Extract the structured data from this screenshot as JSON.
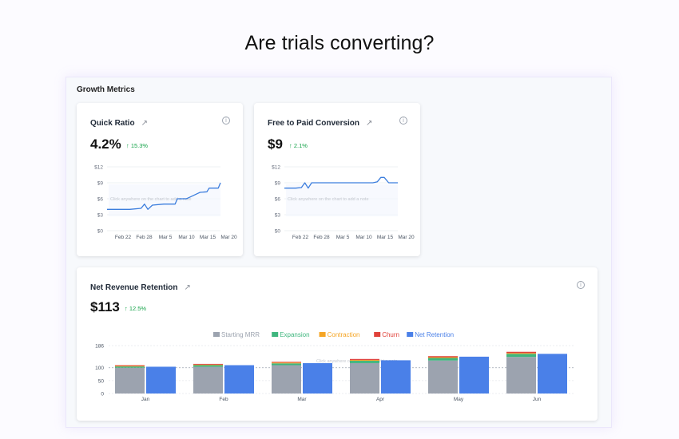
{
  "page": {
    "headline": "Are trials converting?"
  },
  "panel": {
    "title": "Growth Metrics"
  },
  "cards": [
    {
      "title": "Quick Ratio",
      "value": "4.2%",
      "delta": "↑ 15.3%",
      "overlay_note": "Click anywhere on the chart to add a note",
      "chart_data": {
        "type": "line",
        "y_ticks": [
          "$12",
          "$9",
          "$6",
          "$3",
          "$0"
        ],
        "ylim": [
          0,
          12
        ],
        "x_ticks": [
          "Feb 22",
          "Feb 28",
          "Mar 5",
          "Mar 10",
          "Mar 15",
          "Mar 20"
        ],
        "x": [
          0,
          0.1,
          0.2,
          0.3,
          0.33,
          0.36,
          0.4,
          0.5,
          0.55,
          0.6,
          0.62,
          0.7,
          0.72,
          0.8,
          0.82,
          0.88,
          0.9,
          0.95,
          0.98,
          1.0
        ],
        "y": [
          4,
          4,
          4,
          4.2,
          5,
          4,
          4.8,
          5,
          5,
          5,
          6,
          6,
          6.2,
          7,
          7.2,
          7.3,
          8,
          8,
          8,
          9
        ],
        "grid": true,
        "color": "#3b7ddd"
      }
    },
    {
      "title": "Free to Paid Conversion",
      "value": "$9",
      "delta": "↑ 2.1%",
      "overlay_note": "Click anywhere on the chart to add a note",
      "chart_data": {
        "type": "line",
        "y_ticks": [
          "$12",
          "$9",
          "$6",
          "$3",
          "$0"
        ],
        "ylim": [
          0,
          12
        ],
        "x_ticks": [
          "Feb 22",
          "Feb 28",
          "Mar 5",
          "Mar 10",
          "Mar 15",
          "Mar 20"
        ],
        "x": [
          0,
          0.1,
          0.15,
          0.18,
          0.21,
          0.24,
          0.3,
          0.4,
          0.5,
          0.6,
          0.7,
          0.78,
          0.82,
          0.85,
          0.88,
          0.92,
          1.0
        ],
        "y": [
          8,
          8,
          8.1,
          9,
          8,
          9,
          9,
          9,
          9,
          9,
          9,
          9,
          9.2,
          10,
          10,
          9,
          9
        ],
        "grid": true,
        "color": "#3b7ddd"
      }
    }
  ],
  "nrr": {
    "title": "Net Revenue Retention",
    "value": "$113",
    "delta": "↑ 12.5%",
    "overlay_note": "Click anywhere on the chart to add a note",
    "chart_data": {
      "type": "bar",
      "categories": [
        "Jan",
        "Feb",
        "Mar",
        "Apr",
        "May",
        "Jun"
      ],
      "y_ticks": [
        "186",
        "100",
        "50",
        "0"
      ],
      "ylim": [
        0,
        186
      ],
      "ref_line": 100,
      "legend_position": "top-center",
      "series": [
        {
          "name": "Starting MRR",
          "color": "#9ca3af",
          "values": [
            100,
            104,
            110,
            118,
            128,
            142
          ]
        },
        {
          "name": "Expansion",
          "color": "#3fb67e",
          "values": [
            5,
            6,
            7,
            9,
            10,
            12
          ]
        },
        {
          "name": "Contraction",
          "color": "#f5a524",
          "values": [
            2,
            2,
            3,
            3,
            3,
            3
          ]
        },
        {
          "name": "Churn",
          "color": "#e0423a",
          "values": [
            3,
            3,
            3,
            4,
            4,
            5
          ]
        },
        {
          "name": "Net Retention",
          "color": "#4a80e8",
          "values": [
            104,
            110,
            118,
            129,
            143,
            154
          ]
        }
      ]
    }
  }
}
